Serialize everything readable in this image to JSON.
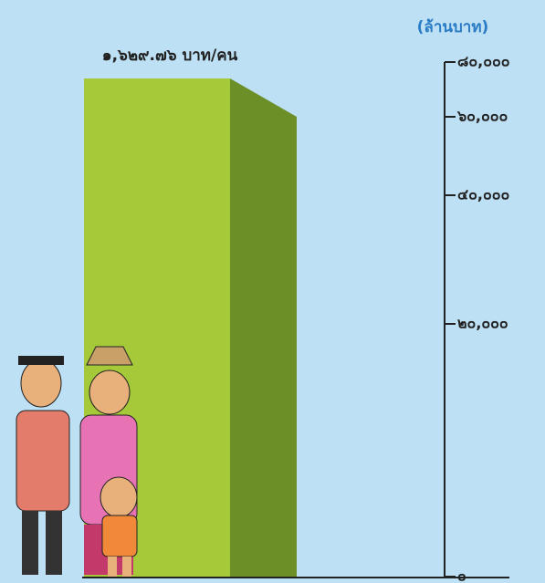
{
  "chart_data": {
    "type": "bar3d",
    "y_label": "(ล้านบาท)",
    "bar_label": "๑,๖๒๙.๗๖ บาท/คน",
    "values": [
      74000
    ],
    "color": "#a6c93a",
    "side_color": "#6d8f27",
    "ylim": [
      0,
      80000
    ],
    "yticks": [
      {
        "value": 0,
        "label": "๐"
      },
      {
        "value": 20000,
        "label": "๒๐,๐๐๐"
      },
      {
        "value": 40000,
        "label": "๔๐,๐๐๐"
      },
      {
        "value": 60000,
        "label": "๖๐,๐๐๐"
      },
      {
        "value": 80000,
        "label": "๘๐,๐๐๐"
      }
    ]
  }
}
